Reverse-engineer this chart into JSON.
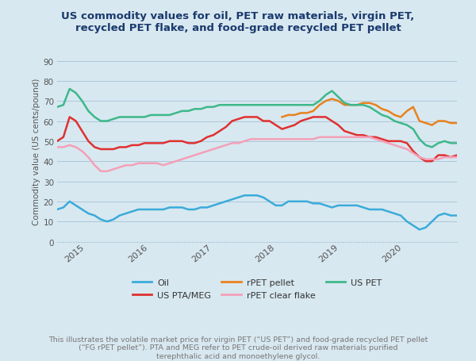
{
  "title": "US commodity values for oil, PET raw materials, virgin PET,\nrecycled PET flake, and food-grade recycled PET pellet",
  "ylabel": "Commodity value (US cents/pound)",
  "bg_color": "#d8e8f0",
  "plot_bg_color": "#d8e8f0",
  "ylim": [
    0,
    90
  ],
  "yticks": [
    0,
    10,
    20,
    30,
    40,
    50,
    60,
    70,
    80,
    90
  ],
  "footnote": "This illustrates the volatile market price for virgin PET (“US PET”) and food-grade recycled PET pellet\n(“FG rPET pellet”). PTA and MEG refer to PET crude-oil derived raw materials purified\nterephthalic acid and monoethylene glycol.",
  "series": {
    "Oil": {
      "color": "#3aabda",
      "linewidth": 1.8,
      "values": [
        16,
        17,
        20,
        18,
        16,
        14,
        13,
        11,
        10,
        11,
        13,
        14,
        15,
        16,
        16,
        16,
        16,
        16,
        17,
        17,
        17,
        16,
        16,
        17,
        17,
        18,
        19,
        20,
        21,
        22,
        23,
        23,
        23,
        22,
        20,
        18,
        18,
        20,
        20,
        20,
        20,
        19,
        19,
        18,
        17,
        18,
        18,
        18,
        18,
        17,
        16,
        16,
        16,
        15,
        14,
        13,
        10,
        8,
        6,
        7,
        10,
        13,
        14,
        13,
        13
      ]
    },
    "US_PTA_MEG": {
      "color": "#e03030",
      "linewidth": 1.8,
      "values": [
        50,
        52,
        62,
        60,
        55,
        50,
        47,
        46,
        46,
        46,
        47,
        47,
        48,
        48,
        49,
        49,
        49,
        49,
        50,
        50,
        50,
        49,
        49,
        50,
        52,
        53,
        55,
        57,
        60,
        61,
        62,
        62,
        62,
        60,
        60,
        58,
        56,
        57,
        58,
        60,
        61,
        62,
        62,
        62,
        60,
        58,
        55,
        54,
        53,
        53,
        52,
        52,
        51,
        50,
        50,
        50,
        49,
        45,
        42,
        40,
        40,
        43,
        43,
        42,
        43
      ]
    },
    "rPET_pellet": {
      "color": "#e8821e",
      "linewidth": 1.8,
      "values": [
        null,
        null,
        null,
        null,
        null,
        null,
        null,
        null,
        null,
        null,
        null,
        null,
        null,
        null,
        null,
        null,
        null,
        null,
        null,
        null,
        null,
        null,
        null,
        null,
        null,
        null,
        null,
        null,
        null,
        null,
        null,
        null,
        null,
        null,
        null,
        null,
        62,
        63,
        63,
        64,
        64,
        65,
        68,
        70,
        71,
        70,
        68,
        68,
        68,
        69,
        69,
        68,
        66,
        65,
        63,
        62,
        65,
        67,
        60,
        59,
        58,
        60,
        60,
        59,
        59
      ]
    },
    "rPET_clear_flake": {
      "color": "#f4a0b8",
      "linewidth": 1.8,
      "values": [
        47,
        47,
        48,
        47,
        45,
        42,
        38,
        35,
        35,
        36,
        37,
        38,
        38,
        39,
        39,
        39,
        39,
        38,
        39,
        40,
        41,
        42,
        43,
        44,
        45,
        46,
        47,
        48,
        49,
        49,
        50,
        51,
        51,
        51,
        51,
        51,
        51,
        51,
        51,
        51,
        51,
        51,
        52,
        52,
        52,
        52,
        52,
        52,
        52,
        52,
        52,
        51,
        50,
        49,
        48,
        47,
        46,
        44,
        42,
        41,
        41,
        41,
        42,
        42,
        42
      ]
    },
    "US_PET": {
      "color": "#3db88a",
      "linewidth": 1.8,
      "values": [
        67,
        68,
        76,
        74,
        70,
        65,
        62,
        60,
        60,
        61,
        62,
        62,
        62,
        62,
        62,
        63,
        63,
        63,
        63,
        64,
        65,
        65,
        66,
        66,
        67,
        67,
        68,
        68,
        68,
        68,
        68,
        68,
        68,
        68,
        68,
        68,
        68,
        68,
        68,
        68,
        68,
        68,
        70,
        73,
        75,
        72,
        69,
        68,
        68,
        68,
        67,
        65,
        63,
        62,
        60,
        59,
        58,
        56,
        51,
        48,
        47,
        49,
        50,
        49,
        49
      ]
    }
  },
  "x_start_year": 2014.55,
  "x_end_year": 2020.85,
  "x_ticks": [
    2015,
    2016,
    2017,
    2018,
    2019,
    2020
  ],
  "n_points": 65,
  "legend_order": [
    "Oil",
    "US_PTA_MEG",
    "rPET_pellet",
    "rPET_clear_flake",
    "US_PET"
  ],
  "legend_labels": [
    "Oil",
    "US PTA/MEG",
    "rPET pellet",
    "rPET clear flake",
    "US PET"
  ]
}
